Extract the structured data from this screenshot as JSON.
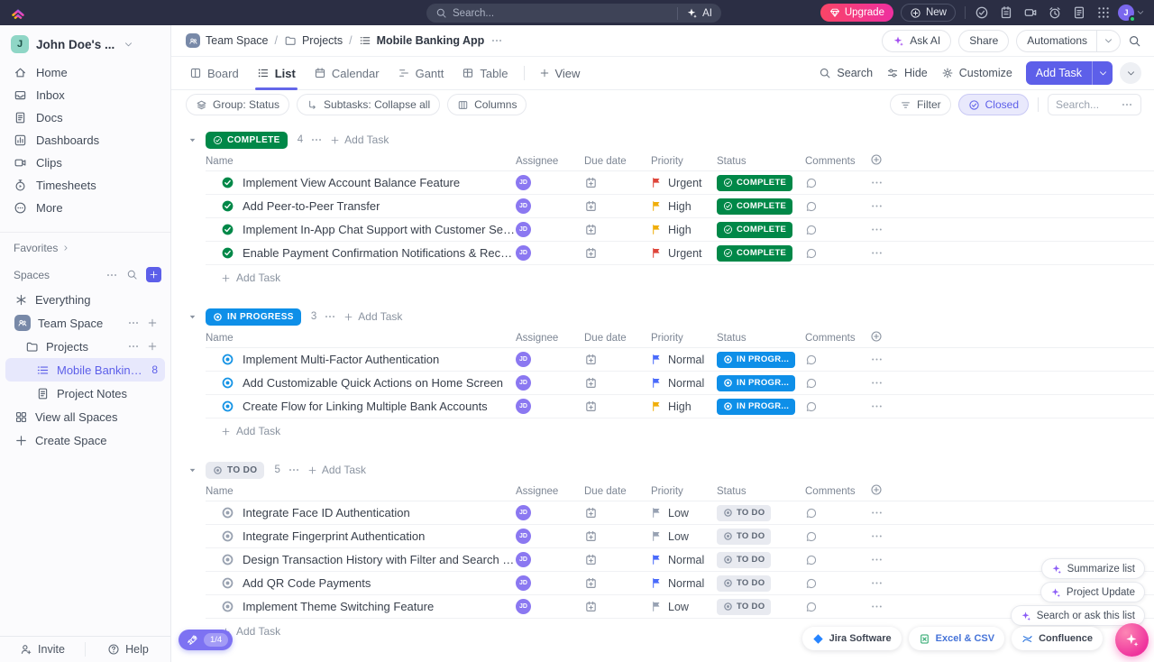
{
  "topbar": {
    "search_placeholder": "Search...",
    "ai_label": "AI",
    "upgrade_label": "Upgrade",
    "new_label": "New",
    "icons": [
      "check-circle",
      "notepad",
      "video",
      "alarm",
      "doc",
      "grid9"
    ],
    "avatar_initial": "J"
  },
  "sidebar": {
    "workspace_name": "John Doe's ...",
    "workspace_initial": "J",
    "nav": [
      {
        "label": "Home",
        "icon": "home"
      },
      {
        "label": "Inbox",
        "icon": "inbox"
      },
      {
        "label": "Docs",
        "icon": "doc"
      },
      {
        "label": "Dashboards",
        "icon": "dashboard"
      },
      {
        "label": "Clips",
        "icon": "clips"
      },
      {
        "label": "Timesheets",
        "icon": "timesheet"
      },
      {
        "label": "More",
        "icon": "more-circle"
      }
    ],
    "favorites_label": "Favorites",
    "spaces_label": "Spaces",
    "tree": [
      {
        "label": "Everything",
        "icon": "asterisk",
        "indent": 0
      },
      {
        "label": "Team Space",
        "icon": "people-badge",
        "indent": 0,
        "actions": true
      },
      {
        "label": "Projects",
        "icon": "folder",
        "indent": 1,
        "actions": true
      },
      {
        "label": "Mobile Banking App",
        "icon": "listic",
        "indent": 2,
        "selected": true,
        "count": "8"
      },
      {
        "label": "Project Notes",
        "icon": "doc",
        "indent": 2
      },
      {
        "label": "View all Spaces",
        "icon": "grid4",
        "indent": 0
      },
      {
        "label": "Create Space",
        "icon": "plus",
        "indent": 0
      }
    ],
    "invite_label": "Invite",
    "help_label": "Help",
    "trial_progress": "1/4"
  },
  "breadcrumb": {
    "items": [
      {
        "label": "Team Space",
        "icon": "people-badge"
      },
      {
        "label": "Projects",
        "icon": "folder"
      },
      {
        "label": "Mobile Banking App",
        "icon": "listic",
        "current": true
      }
    ]
  },
  "header_actions": {
    "ask_ai": "Ask AI",
    "share": "Share",
    "automations": "Automations"
  },
  "view_tabs": {
    "tabs": [
      {
        "label": "Board",
        "icon": "board"
      },
      {
        "label": "List",
        "icon": "list-tab",
        "active": true
      },
      {
        "label": "Calendar",
        "icon": "calendar"
      },
      {
        "label": "Gantt",
        "icon": "gantt"
      },
      {
        "label": "Table",
        "icon": "table-ic"
      }
    ],
    "add_view_label": "View"
  },
  "toolbar": {
    "search_label": "Search",
    "hide_label": "Hide",
    "customize_label": "Customize",
    "add_task_label": "Add Task"
  },
  "filter_bar": {
    "group_label": "Group: Status",
    "subtasks_label": "Subtasks: Collapse all",
    "columns_label": "Columns",
    "filter_label": "Filter",
    "closed_label": "Closed",
    "search_placeholder": "Search..."
  },
  "table": {
    "columns": [
      "Name",
      "Assignee",
      "Due date",
      "Priority",
      "Status",
      "Comments"
    ],
    "add_task_label": "Add Task"
  },
  "statuses": {
    "complete": {
      "label": "COMPLETE",
      "row_badge": "COMPLETE",
      "color": "#008848",
      "text_color": "#ffffff"
    },
    "in_progress": {
      "label": "IN PROGRESS",
      "row_badge": "IN PROGR...",
      "color": "#0e8fe8",
      "text_color": "#ffffff"
    },
    "todo": {
      "label": "TO DO",
      "row_badge": "TO DO",
      "color": "#e8eaf0",
      "text_color": "#5c6573",
      "icon_color": "#8a93a3"
    }
  },
  "priorities": {
    "Urgent": "#de453a",
    "High": "#f0ae0a",
    "Normal": "#4a6bfb",
    "Low": "#98a2b3"
  },
  "groups": [
    {
      "status": "complete",
      "count": "4",
      "tasks": [
        {
          "name": "Implement View Account Balance Feature",
          "assignee": "JD",
          "priority": "Urgent"
        },
        {
          "name": "Add Peer-to-Peer Transfer",
          "assignee": "JD",
          "priority": "High"
        },
        {
          "name": "Implement In-App Chat Support with Customer Service",
          "assignee": "JD",
          "priority": "High"
        },
        {
          "name": "Enable Payment Confirmation Notifications & Receipts",
          "assignee": "JD",
          "priority": "Urgent"
        }
      ]
    },
    {
      "status": "in_progress",
      "count": "3",
      "tasks": [
        {
          "name": "Implement Multi-Factor Authentication",
          "assignee": "JD",
          "priority": "Normal"
        },
        {
          "name": "Add Customizable Quick Actions on Home Screen",
          "assignee": "JD",
          "priority": "Normal"
        },
        {
          "name": "Create Flow for Linking Multiple Bank Accounts",
          "assignee": "JD",
          "priority": "High"
        }
      ]
    },
    {
      "status": "todo",
      "count": "5",
      "tasks": [
        {
          "name": "Integrate Face ID Authentication",
          "assignee": "JD",
          "priority": "Low"
        },
        {
          "name": "Integrate Fingerprint Authentication",
          "assignee": "JD",
          "priority": "Low"
        },
        {
          "name": "Design Transaction History with Filter and Search Options",
          "assignee": "JD",
          "priority": "Normal"
        },
        {
          "name": "Add QR Code Payments",
          "assignee": "JD",
          "priority": "Normal"
        },
        {
          "name": "Implement Theme Switching Feature",
          "assignee": "JD",
          "priority": "Low"
        }
      ]
    }
  ],
  "floating": {
    "ai_actions": [
      "Summarize list",
      "Project Update",
      "Search or ask this list"
    ],
    "integrations": [
      {
        "label": "Jira Software",
        "icon": "diamond",
        "icon_color": "#2684ff",
        "text_color": "#3f4653"
      },
      {
        "label": "Excel & CSV",
        "icon": "excel-doc",
        "icon_color": "#21a366",
        "text_color": "#4573d8"
      },
      {
        "label": "Confluence",
        "icon": "confluence",
        "icon_color": "#1868db",
        "text_color": "#3f4653"
      }
    ]
  }
}
